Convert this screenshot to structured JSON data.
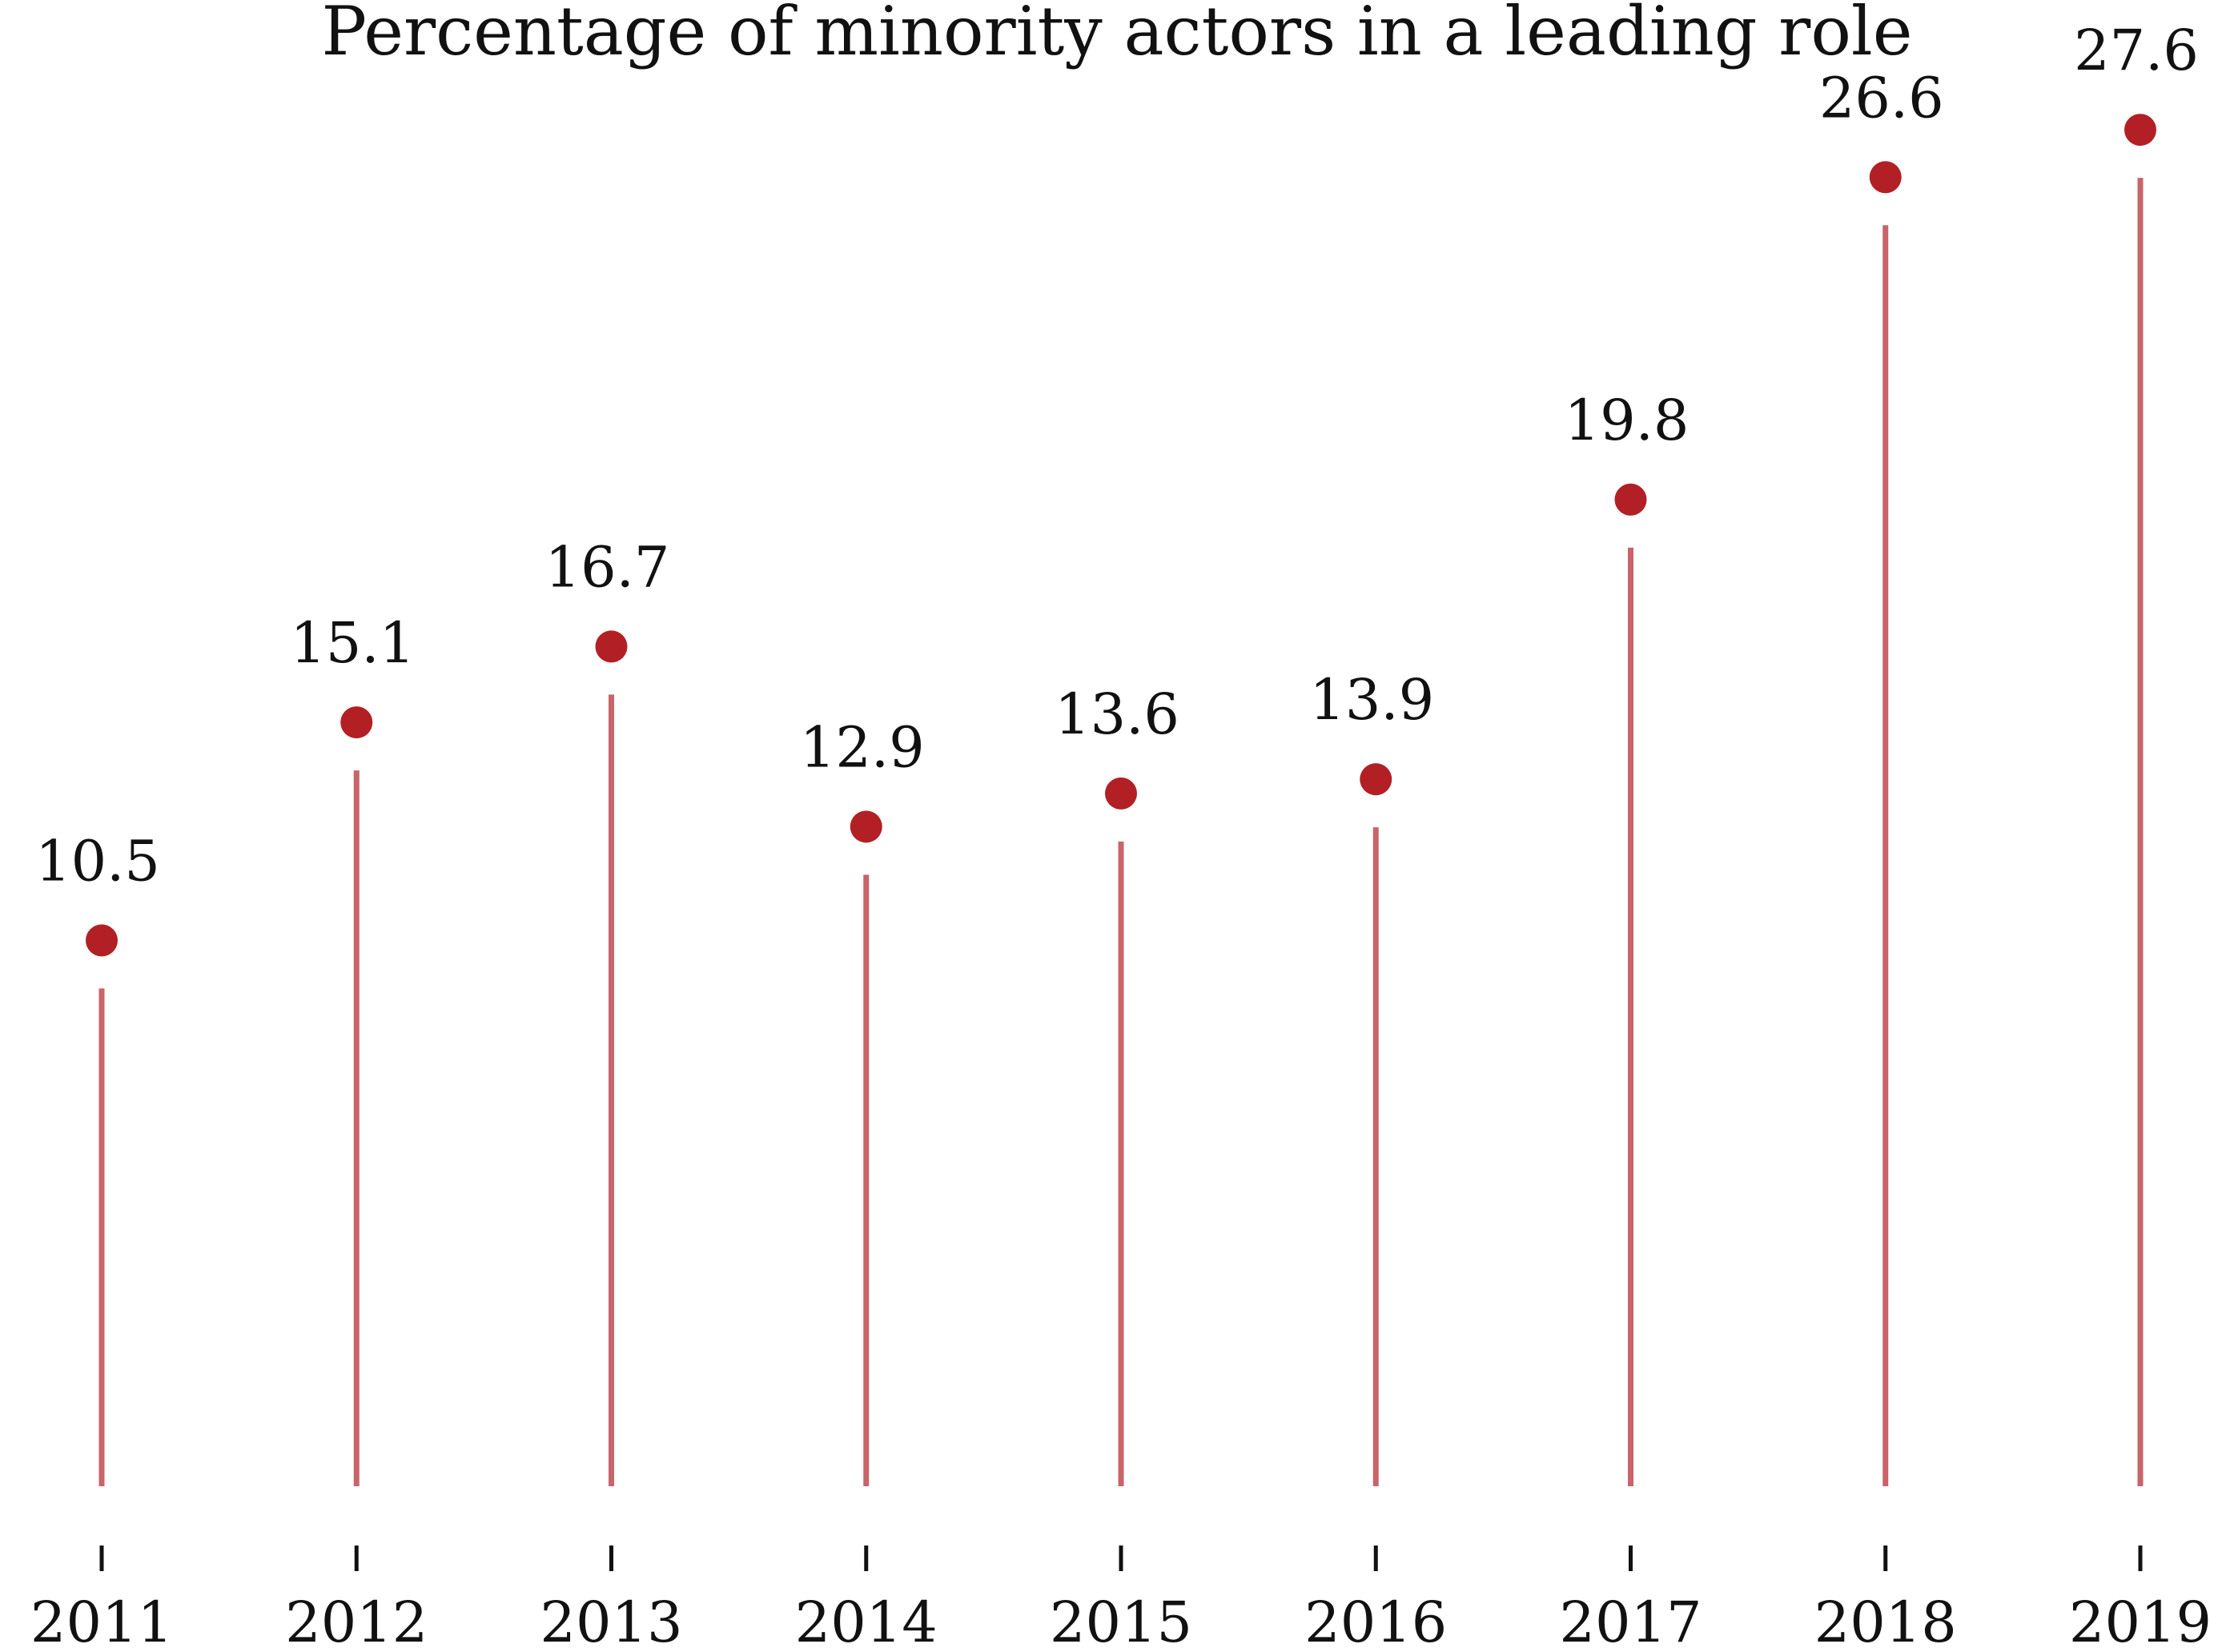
{
  "chart_data": {
    "type": "lollipop",
    "title": "Percentage of minority actors in a leading role",
    "xlabel": "",
    "ylabel": "",
    "categories": [
      "2011",
      "2012",
      "2013",
      "2014",
      "2015",
      "2016",
      "2017",
      "2018",
      "2019"
    ],
    "values": [
      10.5,
      15.1,
      16.7,
      12.9,
      13.6,
      13.9,
      19.8,
      26.6,
      27.6
    ],
    "value_labels": [
      "10.5",
      "15.1",
      "16.7",
      "12.9",
      "13.6",
      "13.9",
      "19.8",
      "26.6",
      "27.6"
    ],
    "ylim": [
      0,
      28
    ],
    "grid": false,
    "legend": "none",
    "colors": {
      "marker": "#b22025",
      "stem": "#c8646a",
      "text": "#111111",
      "tick": "#111111"
    }
  }
}
